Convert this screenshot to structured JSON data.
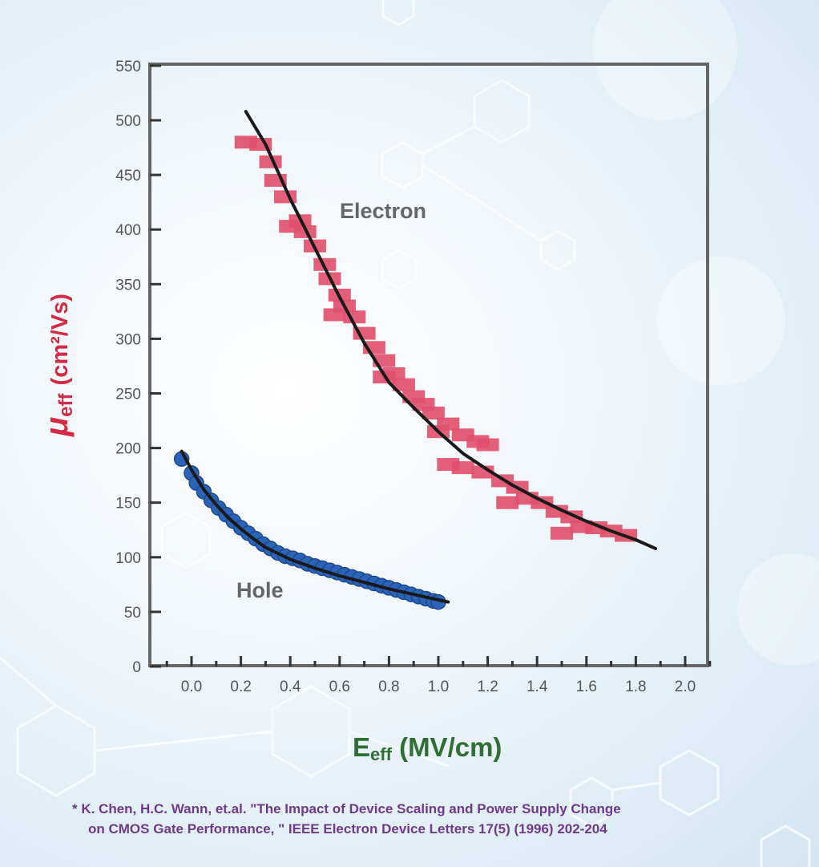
{
  "chart_data": {
    "type": "scatter",
    "xlabel": "Eeff (MV/cm)",
    "xlabel_main": "E",
    "xlabel_sub": "eff",
    "xlabel_unit": " (MV/cm)",
    "ylabel": "μeff (cm²/Vs)",
    "ylabel_main": "μ",
    "ylabel_sub": "eff",
    "ylabel_unit": "(cm²/Vs)",
    "xlim": [
      -0.2,
      2.1
    ],
    "ylim": [
      0,
      550
    ],
    "x_ticks": [
      "0.0",
      "0.2",
      "0.4",
      "0.6",
      "0.8",
      "1.0",
      "1.2",
      "1.4",
      "1.6",
      "1.8",
      "2.0"
    ],
    "y_ticks": [
      "0",
      "50",
      "100",
      "150",
      "200",
      "250",
      "300",
      "350",
      "400",
      "450",
      "500",
      "550"
    ],
    "series": [
      {
        "name": "Electron",
        "color": "#e0506e",
        "points": [
          {
            "x": 0.22,
            "y": 480
          },
          {
            "x": 0.28,
            "y": 478
          },
          {
            "x": 0.32,
            "y": 462
          },
          {
            "x": 0.34,
            "y": 445
          },
          {
            "x": 0.38,
            "y": 430
          },
          {
            "x": 0.4,
            "y": 403
          },
          {
            "x": 0.44,
            "y": 408
          },
          {
            "x": 0.46,
            "y": 398
          },
          {
            "x": 0.5,
            "y": 385
          },
          {
            "x": 0.54,
            "y": 368
          },
          {
            "x": 0.56,
            "y": 355
          },
          {
            "x": 0.6,
            "y": 340
          },
          {
            "x": 0.62,
            "y": 330
          },
          {
            "x": 0.58,
            "y": 322
          },
          {
            "x": 0.66,
            "y": 320
          },
          {
            "x": 0.7,
            "y": 305
          },
          {
            "x": 0.74,
            "y": 292
          },
          {
            "x": 0.78,
            "y": 280
          },
          {
            "x": 0.82,
            "y": 268
          },
          {
            "x": 0.78,
            "y": 265
          },
          {
            "x": 0.86,
            "y": 258
          },
          {
            "x": 0.9,
            "y": 247
          },
          {
            "x": 0.94,
            "y": 240
          },
          {
            "x": 0.98,
            "y": 232
          },
          {
            "x": 1.0,
            "y": 215
          },
          {
            "x": 1.04,
            "y": 222
          },
          {
            "x": 1.1,
            "y": 212
          },
          {
            "x": 1.16,
            "y": 206
          },
          {
            "x": 1.2,
            "y": 203
          },
          {
            "x": 1.04,
            "y": 185
          },
          {
            "x": 1.1,
            "y": 182
          },
          {
            "x": 1.18,
            "y": 178
          },
          {
            "x": 1.26,
            "y": 170
          },
          {
            "x": 1.32,
            "y": 164
          },
          {
            "x": 1.28,
            "y": 150
          },
          {
            "x": 1.36,
            "y": 154
          },
          {
            "x": 1.42,
            "y": 150
          },
          {
            "x": 1.48,
            "y": 142
          },
          {
            "x": 1.54,
            "y": 137
          },
          {
            "x": 1.5,
            "y": 122
          },
          {
            "x": 1.58,
            "y": 128
          },
          {
            "x": 1.64,
            "y": 127
          },
          {
            "x": 1.7,
            "y": 124
          },
          {
            "x": 1.76,
            "y": 120
          }
        ],
        "fit": [
          {
            "x": 0.22,
            "y": 508
          },
          {
            "x": 0.3,
            "y": 478
          },
          {
            "x": 0.4,
            "y": 428
          },
          {
            "x": 0.5,
            "y": 383
          },
          {
            "x": 0.6,
            "y": 338
          },
          {
            "x": 0.7,
            "y": 296
          },
          {
            "x": 0.8,
            "y": 260
          },
          {
            "x": 0.9,
            "y": 237
          },
          {
            "x": 1.0,
            "y": 215
          },
          {
            "x": 1.1,
            "y": 195
          },
          {
            "x": 1.2,
            "y": 180
          },
          {
            "x": 1.3,
            "y": 166
          },
          {
            "x": 1.4,
            "y": 154
          },
          {
            "x": 1.5,
            "y": 143
          },
          {
            "x": 1.6,
            "y": 133
          },
          {
            "x": 1.7,
            "y": 124
          },
          {
            "x": 1.8,
            "y": 116
          },
          {
            "x": 1.88,
            "y": 108
          }
        ]
      },
      {
        "name": "Hole",
        "color": "#2a63b8",
        "points": [
          {
            "x": -0.04,
            "y": 190
          },
          {
            "x": 0.0,
            "y": 177
          },
          {
            "x": 0.02,
            "y": 168
          },
          {
            "x": 0.05,
            "y": 160
          },
          {
            "x": 0.08,
            "y": 152
          },
          {
            "x": 0.11,
            "y": 145
          },
          {
            "x": 0.14,
            "y": 139
          },
          {
            "x": 0.17,
            "y": 133
          },
          {
            "x": 0.2,
            "y": 127
          },
          {
            "x": 0.23,
            "y": 122
          },
          {
            "x": 0.26,
            "y": 117
          },
          {
            "x": 0.29,
            "y": 112
          },
          {
            "x": 0.32,
            "y": 108
          },
          {
            "x": 0.35,
            "y": 104
          },
          {
            "x": 0.38,
            "y": 101
          },
          {
            "x": 0.41,
            "y": 99
          },
          {
            "x": 0.44,
            "y": 97
          },
          {
            "x": 0.47,
            "y": 94
          },
          {
            "x": 0.5,
            "y": 92
          },
          {
            "x": 0.53,
            "y": 90
          },
          {
            "x": 0.56,
            "y": 88
          },
          {
            "x": 0.59,
            "y": 86
          },
          {
            "x": 0.62,
            "y": 84
          },
          {
            "x": 0.65,
            "y": 82
          },
          {
            "x": 0.68,
            "y": 80
          },
          {
            "x": 0.71,
            "y": 78
          },
          {
            "x": 0.74,
            "y": 76
          },
          {
            "x": 0.77,
            "y": 74
          },
          {
            "x": 0.8,
            "y": 72
          },
          {
            "x": 0.83,
            "y": 70
          },
          {
            "x": 0.86,
            "y": 68
          },
          {
            "x": 0.89,
            "y": 66
          },
          {
            "x": 0.92,
            "y": 64
          },
          {
            "x": 0.95,
            "y": 62
          },
          {
            "x": 0.98,
            "y": 60
          },
          {
            "x": 1.0,
            "y": 59
          }
        ],
        "fit": [
          {
            "x": -0.04,
            "y": 197
          },
          {
            "x": 0.0,
            "y": 180
          },
          {
            "x": 0.05,
            "y": 162
          },
          {
            "x": 0.1,
            "y": 148
          },
          {
            "x": 0.15,
            "y": 136
          },
          {
            "x": 0.2,
            "y": 126
          },
          {
            "x": 0.25,
            "y": 117
          },
          {
            "x": 0.3,
            "y": 109
          },
          {
            "x": 0.4,
            "y": 98
          },
          {
            "x": 0.5,
            "y": 90
          },
          {
            "x": 0.6,
            "y": 83
          },
          {
            "x": 0.7,
            "y": 77
          },
          {
            "x": 0.8,
            "y": 71
          },
          {
            "x": 0.9,
            "y": 66
          },
          {
            "x": 1.0,
            "y": 61
          },
          {
            "x": 1.04,
            "y": 59
          }
        ]
      }
    ]
  },
  "citation": {
    "line1": "* K. Chen, H.C. Wann, et.al. \"The Impact of Device Scaling and Power Supply Change",
    "line2": "on CMOS Gate Performance, \" IEEE Electron Device Letters 17(5) (1996) 202-204"
  }
}
